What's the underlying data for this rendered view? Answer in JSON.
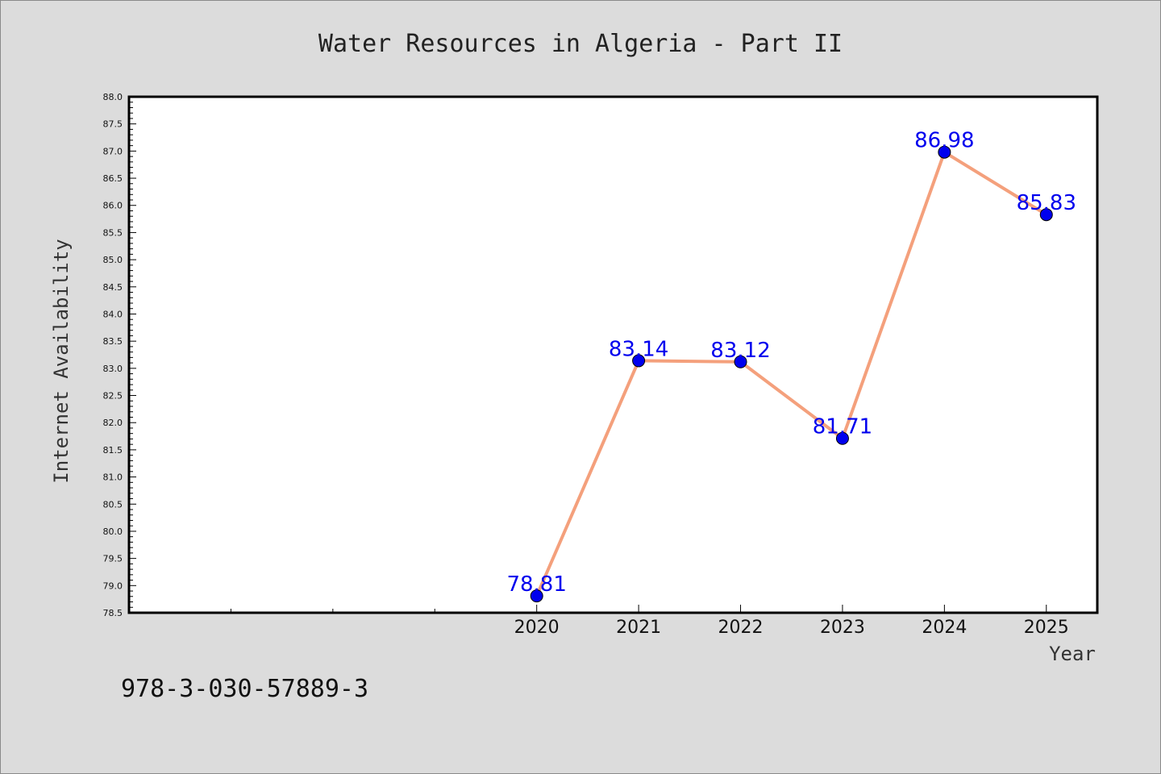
{
  "chart_data": {
    "type": "line",
    "title": "Water Resources in Algeria - Part II",
    "xlabel": "Year",
    "ylabel": "Internet Availability",
    "x": [
      "2020",
      "2021",
      "2022",
      "2023",
      "2024",
      "2025"
    ],
    "series": [
      {
        "values": [
          78.81,
          83.14,
          83.12,
          81.71,
          86.98,
          85.83
        ]
      }
    ],
    "data_labels": [
      "78.81",
      "83.14",
      "83.12",
      "81.71",
      "86.98",
      "85.83"
    ],
    "ylim": [
      78.5,
      88.0
    ],
    "yticks": [
      "78.5",
      "79.0",
      "79.5",
      "80.0",
      "80.5",
      "81.0",
      "81.5",
      "82.0",
      "82.5",
      "83.0",
      "83.5",
      "84.0",
      "84.5",
      "85.0",
      "85.5",
      "86.0",
      "86.5",
      "87.0",
      "87.5",
      "88.0"
    ],
    "xlim_years": [
      2016,
      2025.5
    ],
    "grid": false,
    "line_color": "#f4a07c",
    "marker_color": "#0000ee",
    "label_color": "#0000ee",
    "plot_background": "#ffffff",
    "figure_background": "#dcdcdc"
  },
  "footer": {
    "isbn": "978-3-030-57889-3"
  }
}
